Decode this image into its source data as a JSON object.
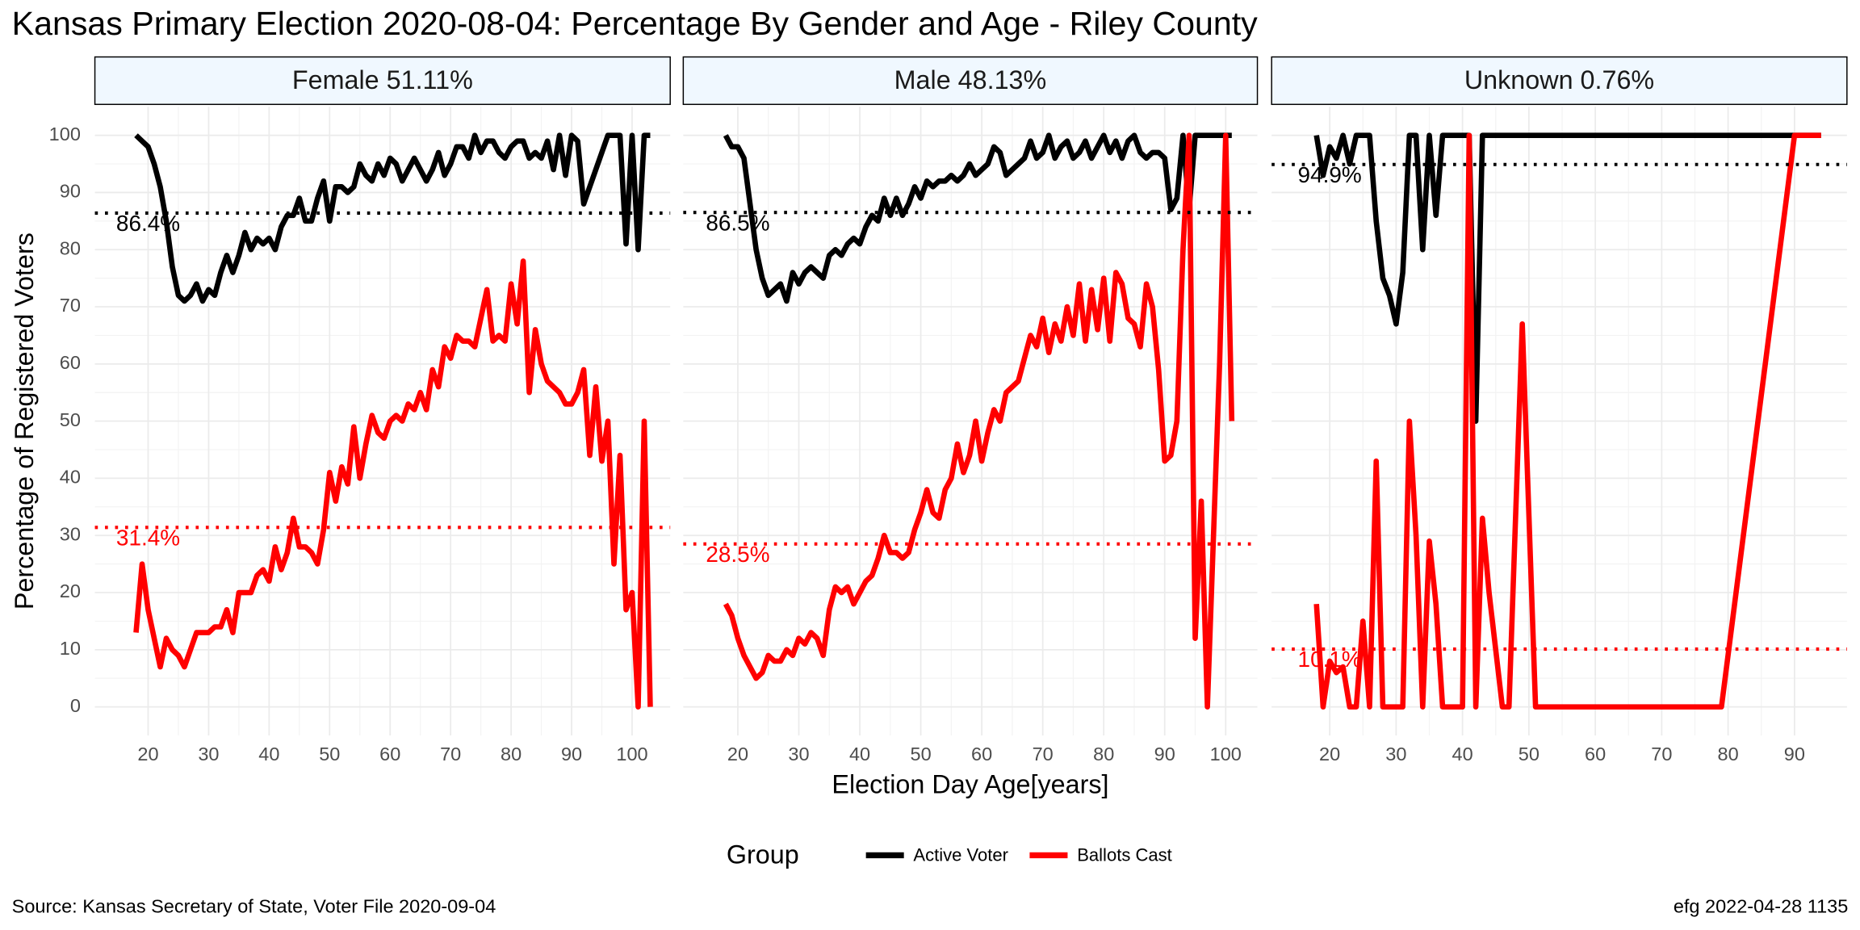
{
  "title": "Kansas Primary Election 2020-08-04:  Percentage By Gender and Age - Riley County",
  "x_label": "Election Day Age[years]",
  "y_label": "Percentage of Registered Voters",
  "legend_title": "Group",
  "source": "Source:  Kansas Secretary of State, Voter File  2020-09-04",
  "stamp": "efg 2022-04-28 1135",
  "chart_data": [
    {
      "type": "line",
      "facet": "Female 51.11%",
      "xlim": [
        11.2,
        106.3
      ],
      "xticks": [
        20,
        30,
        40,
        50,
        60,
        70,
        80,
        90,
        100
      ],
      "ylim": [
        -5,
        105
      ],
      "yticks": [
        0,
        10,
        20,
        30,
        40,
        50,
        60,
        70,
        80,
        90,
        100
      ],
      "grid": true,
      "x": [
        18,
        19,
        20,
        21,
        22,
        23,
        24,
        25,
        26,
        27,
        28,
        29,
        30,
        31,
        32,
        33,
        34,
        35,
        36,
        37,
        38,
        39,
        40,
        41,
        42,
        43,
        44,
        45,
        46,
        47,
        48,
        49,
        50,
        51,
        52,
        53,
        54,
        55,
        56,
        57,
        58,
        59,
        60,
        61,
        62,
        63,
        64,
        65,
        66,
        67,
        68,
        69,
        70,
        71,
        72,
        73,
        74,
        75,
        76,
        77,
        78,
        79,
        80,
        81,
        82,
        83,
        84,
        85,
        86,
        87,
        88,
        89,
        90,
        91,
        92,
        93,
        94,
        95,
        96,
        97,
        98,
        99,
        100,
        101,
        102,
        103
      ],
      "series": [
        {
          "name": "Active Voter",
          "color": "#000000",
          "values": [
            100,
            99,
            98,
            95,
            91,
            85,
            77,
            72,
            71,
            72,
            74,
            71,
            73,
            72,
            76,
            79,
            76,
            79,
            83,
            80,
            82,
            81,
            82,
            80,
            84,
            86,
            86,
            89,
            85,
            85,
            89,
            92,
            85,
            91,
            91,
            90,
            91,
            95,
            93,
            92,
            95,
            93,
            96,
            95,
            92,
            94,
            96,
            94,
            92,
            94,
            97,
            93,
            95,
            98,
            98,
            96,
            100,
            97,
            99,
            99,
            97,
            96,
            98,
            99,
            99,
            96,
            97,
            96,
            99,
            94,
            100,
            93,
            100,
            99,
            88,
            91,
            94,
            97,
            100,
            100,
            100,
            81,
            100,
            80,
            100,
            100
          ]
        },
        {
          "name": "Ballots Cast",
          "color": "#ff0000",
          "values": [
            13,
            25,
            17,
            12,
            7,
            12,
            10,
            9,
            7,
            10,
            13,
            13,
            13,
            14,
            14,
            17,
            13,
            20,
            20,
            20,
            23,
            24,
            22,
            28,
            24,
            27,
            33,
            28,
            28,
            27,
            25,
            31,
            41,
            36,
            42,
            39,
            49,
            40,
            46,
            51,
            48,
            47,
            50,
            51,
            50,
            53,
            52,
            55,
            52,
            59,
            56,
            63,
            61,
            65,
            64,
            64,
            63,
            68,
            73,
            64,
            65,
            64,
            74,
            67,
            78,
            55,
            66,
            60,
            57,
            56,
            55,
            53,
            53,
            55,
            59,
            44,
            56,
            43,
            50,
            25,
            44,
            17,
            20,
            0,
            50,
            0
          ]
        }
      ],
      "ref_lines": [
        {
          "value": 86.4,
          "label": "86.4%",
          "color": "#000000"
        },
        {
          "value": 31.4,
          "label": "31.4%",
          "color": "#ff0000"
        }
      ]
    },
    {
      "type": "line",
      "facet": "Male 48.13%",
      "xlim": [
        11.05,
        105.2
      ],
      "xticks": [
        20,
        30,
        40,
        50,
        60,
        70,
        80,
        90,
        100
      ],
      "ylim": [
        -5,
        105
      ],
      "yticks": [
        0,
        10,
        20,
        30,
        40,
        50,
        60,
        70,
        80,
        90,
        100
      ],
      "grid": true,
      "x": [
        18,
        19,
        20,
        21,
        22,
        23,
        24,
        25,
        26,
        27,
        28,
        29,
        30,
        31,
        32,
        33,
        34,
        35,
        36,
        37,
        38,
        39,
        40,
        41,
        42,
        43,
        44,
        45,
        46,
        47,
        48,
        49,
        50,
        51,
        52,
        53,
        54,
        55,
        56,
        57,
        58,
        59,
        60,
        61,
        62,
        63,
        64,
        65,
        66,
        67,
        68,
        69,
        70,
        71,
        72,
        73,
        74,
        75,
        76,
        77,
        78,
        79,
        80,
        81,
        82,
        83,
        84,
        85,
        86,
        87,
        88,
        89,
        90,
        91,
        92,
        93,
        94,
        95,
        96,
        97,
        98,
        99,
        100,
        101
      ],
      "series": [
        {
          "name": "Active Voter",
          "color": "#000000",
          "values": [
            100,
            98,
            98,
            96,
            88,
            80,
            75,
            72,
            73,
            74,
            71,
            76,
            74,
            76,
            77,
            76,
            75,
            79,
            80,
            79,
            81,
            82,
            81,
            84,
            86,
            85,
            89,
            86,
            89,
            86,
            88,
            91,
            89,
            92,
            91,
            92,
            92,
            93,
            92,
            93,
            95,
            93,
            94,
            95,
            98,
            97,
            93,
            94,
            95,
            96,
            99,
            96,
            97,
            100,
            96,
            98,
            99,
            96,
            97,
            99,
            96,
            98,
            100,
            97,
            99,
            96,
            99,
            100,
            97,
            96,
            97,
            97,
            96,
            87,
            89,
            100,
            87,
            100,
            100,
            100,
            100,
            100,
            100,
            100
          ]
        },
        {
          "name": "Ballots Cast",
          "color": "#ff0000",
          "values": [
            18,
            16,
            12,
            9,
            7,
            5,
            6,
            9,
            8,
            8,
            10,
            9,
            12,
            11,
            13,
            12,
            9,
            17,
            21,
            20,
            21,
            18,
            20,
            22,
            23,
            26,
            30,
            27,
            27,
            26,
            27,
            31,
            34,
            38,
            34,
            33,
            38,
            40,
            46,
            41,
            44,
            50,
            43,
            48,
            52,
            50,
            55,
            56,
            57,
            61,
            65,
            63,
            68,
            62,
            67,
            64,
            70,
            65,
            74,
            64,
            73,
            66,
            75,
            64,
            76,
            74,
            68,
            67,
            63,
            74,
            70,
            59,
            43,
            44,
            50,
            80,
            100,
            12,
            36,
            0,
            30,
            60,
            100,
            50
          ]
        }
      ],
      "ref_lines": [
        {
          "value": 86.5,
          "label": "86.5%",
          "color": "#000000"
        },
        {
          "value": 28.5,
          "label": "28.5%",
          "color": "#ff0000"
        }
      ]
    },
    {
      "type": "line",
      "facet": "Unknown 0.76%",
      "xlim": [
        11.25,
        97.9
      ],
      "xticks": [
        20,
        30,
        40,
        50,
        60,
        70,
        80,
        90
      ],
      "ylim": [
        -5,
        105
      ],
      "yticks": [
        0,
        10,
        20,
        30,
        40,
        50,
        60,
        70,
        80,
        90,
        100
      ],
      "grid": true,
      "x": [
        18,
        19,
        20,
        21,
        22,
        23,
        24,
        25,
        26,
        27,
        28,
        29,
        30,
        31,
        32,
        33,
        34,
        35,
        36,
        37,
        38,
        40,
        41,
        42,
        43,
        44,
        45,
        46,
        47,
        49,
        51,
        55,
        79,
        90,
        94
      ],
      "series": [
        {
          "name": "Active Voter",
          "color": "#000000",
          "values": [
            100,
            93,
            98,
            96,
            100,
            95,
            100,
            100,
            100,
            85,
            75,
            72,
            67,
            76,
            100,
            100,
            80,
            100,
            86,
            100,
            100,
            100,
            100,
            50,
            100,
            100,
            100,
            100,
            100,
            100,
            100,
            100,
            100,
            100,
            100
          ]
        },
        {
          "name": "Ballots Cast",
          "color": "#ff0000",
          "values": [
            18,
            0,
            8,
            6,
            7,
            0,
            0,
            15,
            0,
            43,
            0,
            0,
            0,
            0,
            50,
            30,
            0,
            29,
            18,
            0,
            0,
            0,
            100,
            0,
            33,
            20,
            10,
            0,
            0,
            67,
            0,
            0,
            0,
            100,
            100
          ]
        }
      ],
      "ref_lines": [
        {
          "value": 94.9,
          "label": "94.9%",
          "color": "#000000"
        },
        {
          "value": 10.1,
          "label": "10.1%",
          "color": "#ff0000"
        }
      ]
    }
  ]
}
